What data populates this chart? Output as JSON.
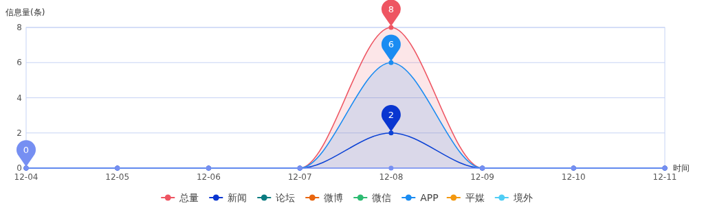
{
  "chart_data": {
    "type": "line",
    "ylabel": "信息量(条)",
    "xlabel": "时间",
    "categories": [
      "12-04",
      "12-05",
      "12-06",
      "12-07",
      "12-08",
      "12-09",
      "12-10",
      "12-11"
    ],
    "ylim": [
      0,
      8
    ],
    "yticks": [
      0,
      2,
      4,
      6,
      8
    ],
    "grid": "y",
    "legend": "bottom",
    "marker": "circle",
    "series": [
      {
        "name": "总量",
        "type": "area",
        "color": "#ee5562",
        "values": [
          0,
          0,
          0,
          0,
          8,
          0,
          0,
          0
        ],
        "value_labels": [
          null,
          null,
          null,
          null,
          "8",
          null,
          null,
          null
        ]
      },
      {
        "name": "新闻",
        "color": "#0a36d0",
        "values": [
          0,
          0,
          0,
          0,
          2,
          0,
          0,
          0
        ],
        "value_labels": [
          null,
          null,
          null,
          null,
          "2",
          null,
          null,
          null
        ]
      },
      {
        "name": "论坛",
        "color": "#0a7b80",
        "values": [
          null,
          null,
          null,
          null,
          null,
          null,
          null,
          null
        ]
      },
      {
        "name": "微博",
        "color": "#e8650e",
        "values": [
          null,
          null,
          null,
          null,
          null,
          null,
          null,
          null
        ]
      },
      {
        "name": "微信",
        "color": "#2dbb72",
        "values": [
          null,
          null,
          null,
          null,
          null,
          null,
          null,
          null
        ]
      },
      {
        "name": "APP",
        "type": "area",
        "color": "#1a8cf2",
        "values": [
          0,
          0,
          0,
          0,
          6,
          0,
          0,
          0
        ],
        "value_labels": [
          null,
          null,
          null,
          null,
          "6",
          null,
          null,
          null
        ]
      },
      {
        "name": "平媒",
        "color": "#f3980f",
        "values": [
          null,
          null,
          null,
          null,
          null,
          null,
          null,
          null
        ]
      },
      {
        "name": "境外",
        "color": "#4fcdf5",
        "values": [
          null,
          null,
          null,
          null,
          null,
          null,
          null,
          null
        ]
      },
      {
        "color": "#768ff2",
        "values": [
          0,
          0,
          0,
          0,
          0,
          0,
          0,
          0
        ],
        "value_labels": [
          "0",
          null,
          null,
          null,
          null,
          null,
          null,
          null
        ]
      }
    ]
  }
}
